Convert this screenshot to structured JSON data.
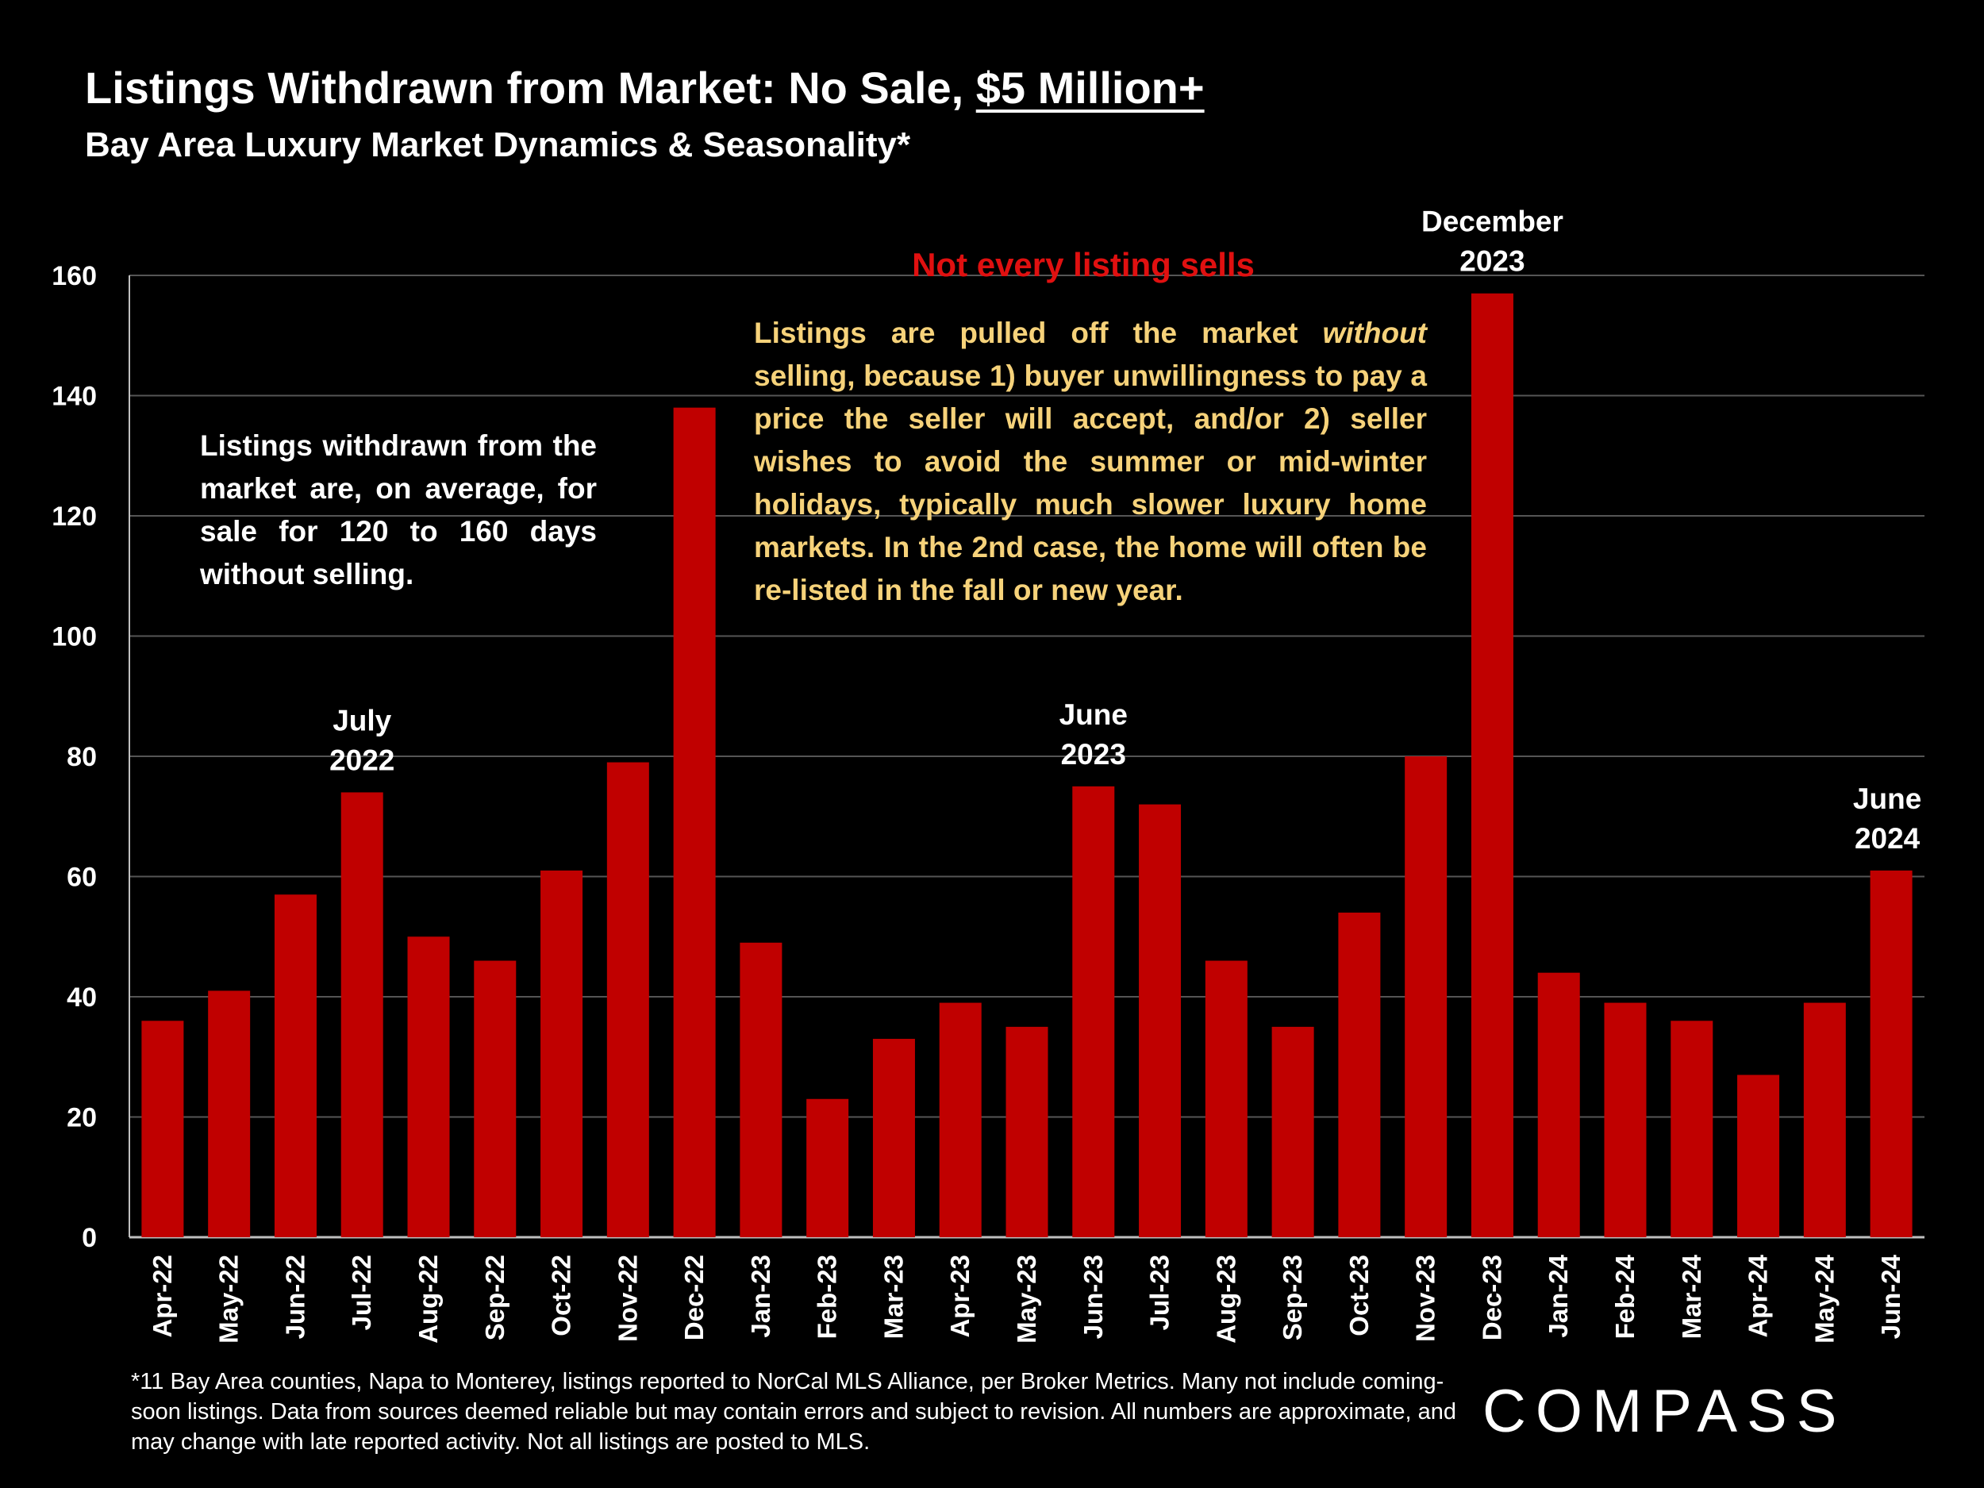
{
  "header": {
    "title_main": "Listings Withdrawn from Market:  No Sale, ",
    "title_underlined": "$5 Million+",
    "subtitle": "Bay Area Luxury Market Dynamics & Seasonality*"
  },
  "notes": {
    "left": "Listings withdrawn from the market are, on average, for sale for 120 to 160 days without selling.",
    "callout_title": "Not every listing sells",
    "callout_body_before": "Listings are pulled off the market ",
    "callout_body_italic": "without",
    "callout_body_after": " selling, because 1) buyer unwillingness to pay a price the seller will accept, and/or 2) seller wishes to avoid the summer or mid-winter holidays, typically much slower luxury home markets. In the 2nd case, the home will often be re-listed in the fall or new year."
  },
  "footnote": "*11 Bay Area counties, Napa to Monterey, listings reported to NorCal MLS Alliance, per Broker Metrics. Many not include coming-soon listings. Data from sources deemed reliable but may contain errors and subject to revision. All numbers are approximate, and may change with late reported activity. Not all listings are posted to MLS.",
  "logo": "COMPASS",
  "colors": {
    "bar": "#c00000",
    "background": "#000000",
    "callout_title": "#e01010",
    "callout_body": "#f6d27a"
  },
  "chart_data": {
    "type": "bar",
    "categories": [
      "Apr-22",
      "May-22",
      "Jun-22",
      "Jul-22",
      "Aug-22",
      "Sep-22",
      "Oct-22",
      "Nov-22",
      "Dec-22",
      "Jan-23",
      "Feb-23",
      "Mar-23",
      "Apr-23",
      "May-23",
      "Jun-23",
      "Jul-23",
      "Aug-23",
      "Sep-23",
      "Oct-23",
      "Nov-23",
      "Dec-23",
      "Jan-24",
      "Feb-24",
      "Mar-24",
      "Apr-24",
      "May-24",
      "Jun-24"
    ],
    "values": [
      36,
      41,
      57,
      74,
      50,
      46,
      61,
      79,
      138,
      49,
      23,
      33,
      39,
      35,
      75,
      72,
      46,
      35,
      54,
      80,
      157,
      44,
      39,
      36,
      27,
      39,
      61
    ],
    "ylim": [
      0,
      160
    ],
    "yticks": [
      0,
      20,
      40,
      60,
      80,
      100,
      120,
      140,
      160
    ],
    "grid": true,
    "annotations": [
      {
        "category": "Jul-22",
        "lines": [
          "July",
          "2022"
        ]
      },
      {
        "category": "Jun-23",
        "lines": [
          "June",
          "2023"
        ]
      },
      {
        "category": "Dec-23",
        "lines": [
          "December",
          "2023"
        ]
      },
      {
        "category": "Jun-24",
        "lines": [
          "June",
          "2024"
        ]
      }
    ]
  }
}
